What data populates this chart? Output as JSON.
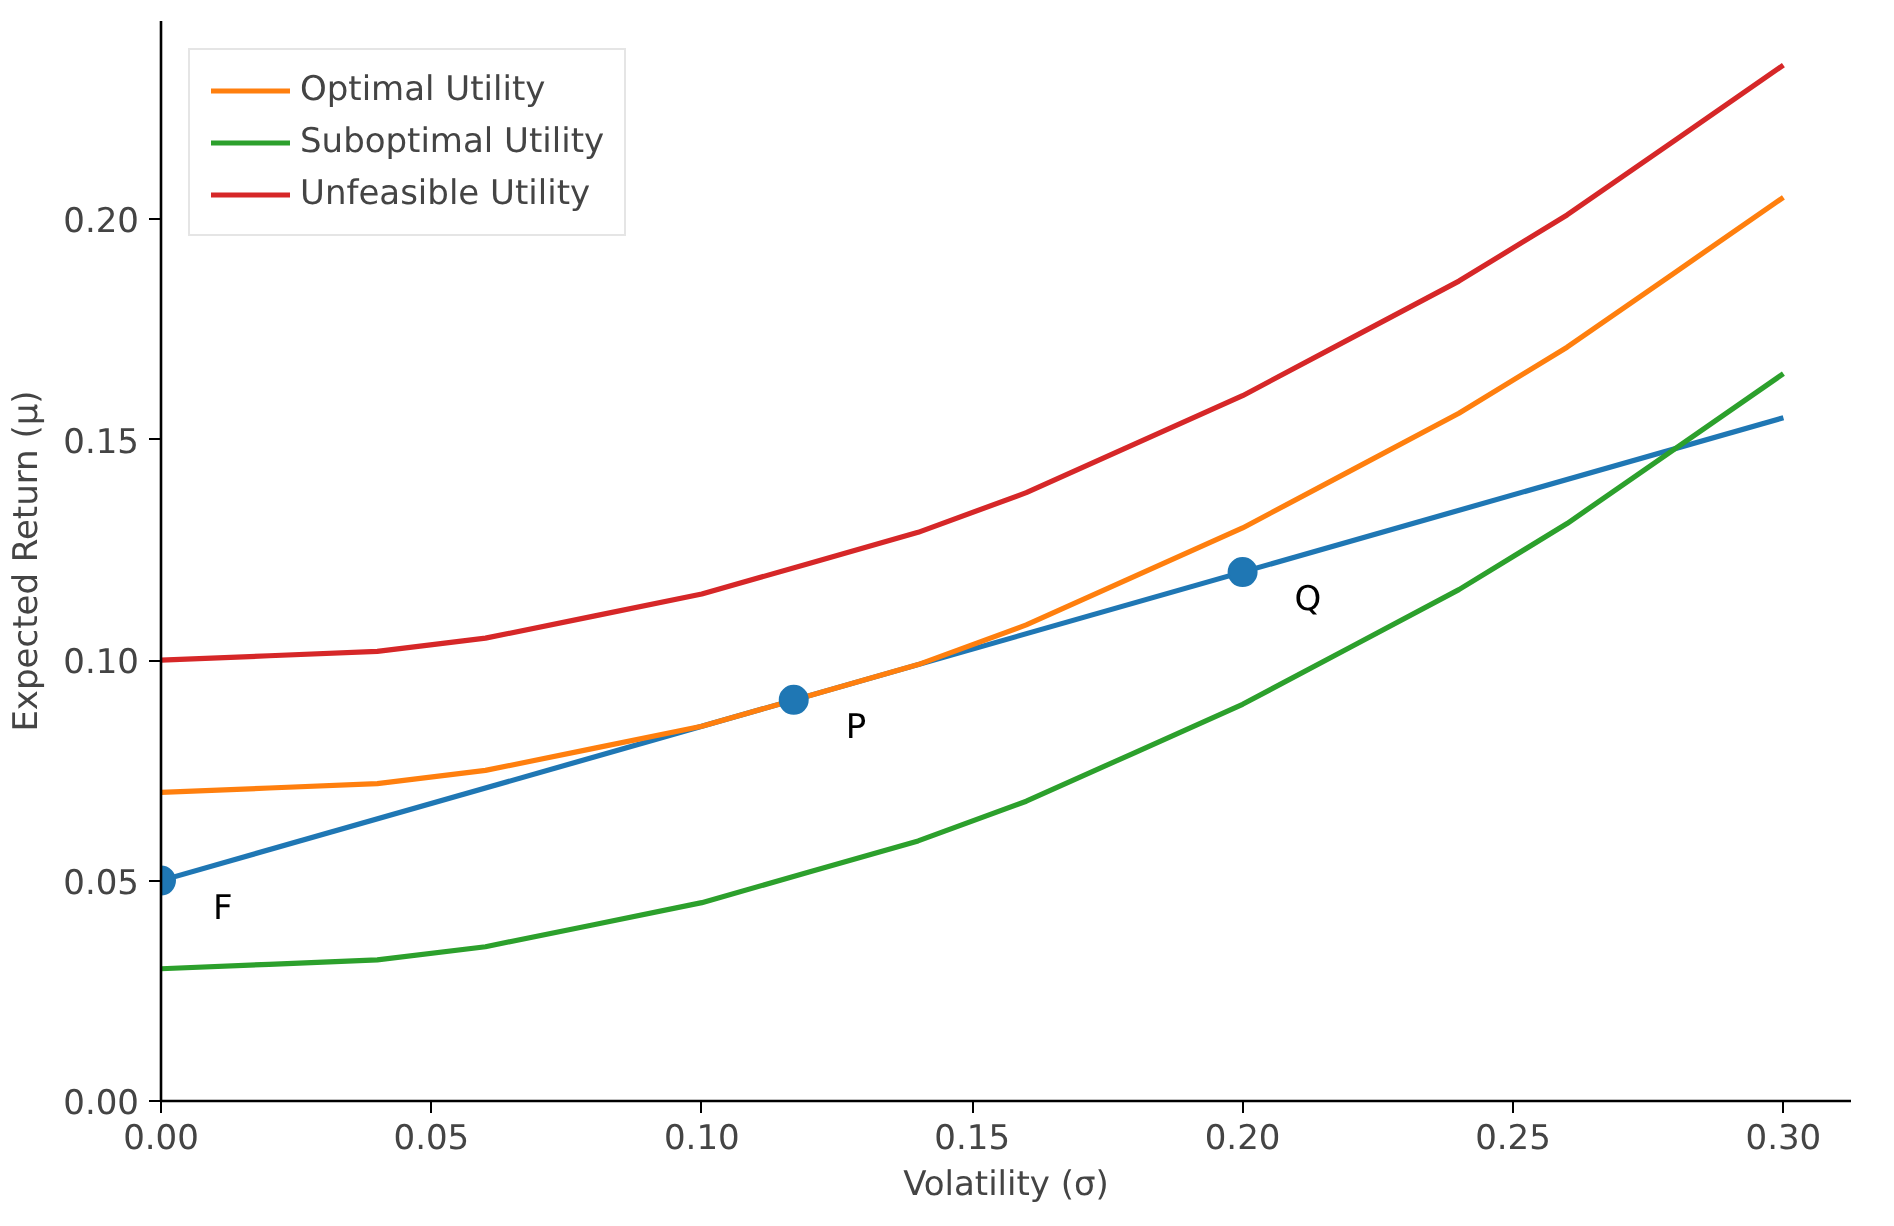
{
  "chart_data": {
    "type": "line",
    "xlabel": "Volatility (σ)",
    "ylabel": "Expected Return (μ)",
    "xlim": [
      0,
      0.3125
    ],
    "ylim": [
      0,
      0.245
    ],
    "xticks": [
      {
        "value": 0,
        "label": "0.00"
      },
      {
        "value": 0.05,
        "label": "0.05"
      },
      {
        "value": 0.1,
        "label": "0.10"
      },
      {
        "value": 0.15,
        "label": "0.15"
      },
      {
        "value": 0.2,
        "label": "0.20"
      },
      {
        "value": 0.25,
        "label": "0.25"
      },
      {
        "value": 0.3,
        "label": "0.30"
      }
    ],
    "yticks": [
      {
        "value": 0,
        "label": "0.00"
      },
      {
        "value": 0.05,
        "label": "0.05"
      },
      {
        "value": 0.1,
        "label": "0.10"
      },
      {
        "value": 0.15,
        "label": "0.15"
      },
      {
        "value": 0.2,
        "label": "0.20"
      }
    ],
    "grid": false,
    "legend": "top left",
    "series": [
      {
        "color": "#1f77b4",
        "x": [
          0,
          0.3
        ],
        "values": [
          0.05,
          0.155
        ]
      },
      {
        "name": "Optimal Utility",
        "color": "#ff7f0e",
        "x": [
          0,
          0.02,
          0.04,
          0.06,
          0.08,
          0.1,
          0.12,
          0.14,
          0.16,
          0.18,
          0.2,
          0.22,
          0.24,
          0.26,
          0.28,
          0.3
        ],
        "values": [
          0.07,
          0.071,
          0.072,
          0.075,
          0.08,
          0.085,
          0.092,
          0.099,
          0.108,
          0.119,
          0.13,
          0.143,
          0.156,
          0.171,
          0.188,
          0.205
        ]
      },
      {
        "name": "Suboptimal Utility",
        "color": "#2ca02c",
        "x": [
          0,
          0.02,
          0.04,
          0.06,
          0.08,
          0.1,
          0.12,
          0.14,
          0.16,
          0.18,
          0.2,
          0.22,
          0.24,
          0.26,
          0.28,
          0.3
        ],
        "values": [
          0.03,
          0.031,
          0.032,
          0.035,
          0.04,
          0.045,
          0.052,
          0.059,
          0.068,
          0.079,
          0.09,
          0.103,
          0.116,
          0.131,
          0.148,
          0.165
        ]
      },
      {
        "name": "Unfeasible Utility",
        "color": "#d62728",
        "x": [
          0,
          0.02,
          0.04,
          0.06,
          0.08,
          0.1,
          0.12,
          0.14,
          0.16,
          0.18,
          0.2,
          0.22,
          0.24,
          0.26,
          0.28,
          0.3
        ],
        "values": [
          0.1,
          0.101,
          0.102,
          0.105,
          0.11,
          0.115,
          0.122,
          0.129,
          0.138,
          0.149,
          0.16,
          0.173,
          0.186,
          0.201,
          0.218,
          0.235
        ]
      },
      {
        "type": "scatter",
        "marker": "circle",
        "color": "#1f77b4",
        "x": [
          0,
          0.117,
          0.2
        ],
        "values": [
          0.05,
          0.091,
          0.12
        ]
      }
    ],
    "annotations": [
      {
        "text": "F",
        "x": 0,
        "y": 0.05
      },
      {
        "text": "P",
        "x": 0.117,
        "y": 0.091
      },
      {
        "text": "Q",
        "x": 0.2,
        "y": 0.12
      }
    ]
  }
}
